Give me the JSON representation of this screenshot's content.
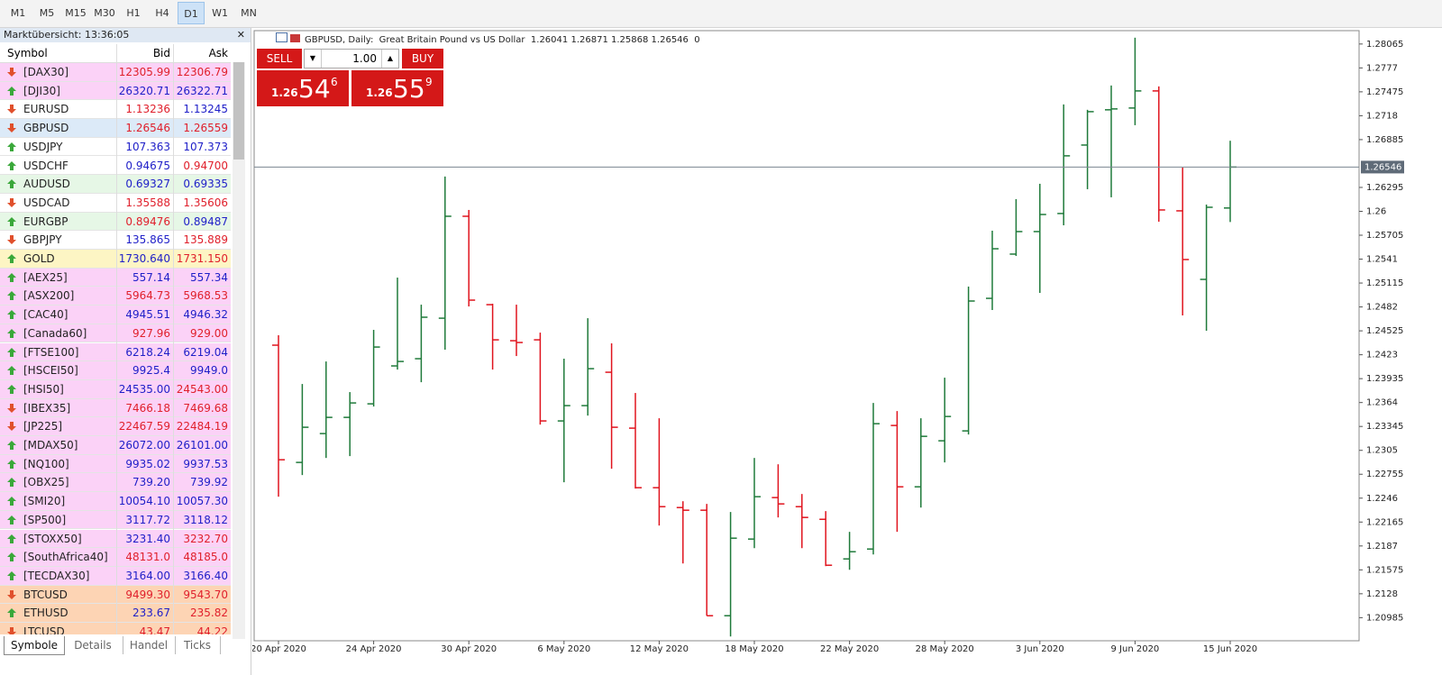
{
  "toolbar": {
    "timeframes": [
      "M1",
      "M5",
      "M15",
      "M30",
      "H1",
      "H4",
      "D1",
      "W1",
      "MN"
    ],
    "active": 6
  },
  "market_watch": {
    "title": "Marktübersicht: 13:36:05",
    "columns": [
      "Symbol",
      "Bid",
      "Ask"
    ],
    "rows": [
      {
        "symbol": "[DAX30]",
        "bid": "12305.99",
        "ask": "12306.79",
        "dir": "down",
        "bg": "#fbd2f7",
        "bid_color": "#e0202c",
        "ask_color": "#e0202c"
      },
      {
        "symbol": "[DJI30]",
        "bid": "26320.71",
        "ask": "26322.71",
        "dir": "up",
        "bg": "#fbd2f7",
        "bid_color": "#1e1ec8",
        "ask_color": "#1e1ec8"
      },
      {
        "symbol": "EURUSD",
        "bid": "1.13236",
        "ask": "1.13245",
        "dir": "down",
        "bg": "#ffffff",
        "bid_color": "#e0202c",
        "ask_color": "#1e1ec8"
      },
      {
        "symbol": "GBPUSD",
        "bid": "1.26546",
        "ask": "1.26559",
        "dir": "down",
        "bg": "#dceaf8",
        "bid_color": "#e0202c",
        "ask_color": "#e0202c"
      },
      {
        "symbol": "USDJPY",
        "bid": "107.363",
        "ask": "107.373",
        "dir": "up",
        "bg": "#ffffff",
        "bid_color": "#1e1ec8",
        "ask_color": "#1e1ec8"
      },
      {
        "symbol": "USDCHF",
        "bid": "0.94675",
        "ask": "0.94700",
        "dir": "up",
        "bg": "#ffffff",
        "bid_color": "#1e1ec8",
        "ask_color": "#e0202c"
      },
      {
        "symbol": "AUDUSD",
        "bid": "0.69327",
        "ask": "0.69335",
        "dir": "up",
        "bg": "#e6f7e6",
        "bid_color": "#1e1ec8",
        "ask_color": "#1e1ec8"
      },
      {
        "symbol": "USDCAD",
        "bid": "1.35588",
        "ask": "1.35606",
        "dir": "down",
        "bg": "#ffffff",
        "bid_color": "#e0202c",
        "ask_color": "#e0202c"
      },
      {
        "symbol": "EURGBP",
        "bid": "0.89476",
        "ask": "0.89487",
        "dir": "up",
        "bg": "#e6f7e6",
        "bid_color": "#e0202c",
        "ask_color": "#1e1ec8"
      },
      {
        "symbol": "GBPJPY",
        "bid": "135.865",
        "ask": "135.889",
        "dir": "down",
        "bg": "#ffffff",
        "bid_color": "#1e1ec8",
        "ask_color": "#e0202c"
      },
      {
        "symbol": "GOLD",
        "bid": "1730.640",
        "ask": "1731.150",
        "dir": "up",
        "bg": "#fdf5c4",
        "bid_color": "#1e1ec8",
        "ask_color": "#e0202c"
      },
      {
        "symbol": "[AEX25]",
        "bid": "557.14",
        "ask": "557.34",
        "dir": "up",
        "bg": "#fbd2f7",
        "bid_color": "#1e1ec8",
        "ask_color": "#1e1ec8"
      },
      {
        "symbol": "[ASX200]",
        "bid": "5964.73",
        "ask": "5968.53",
        "dir": "up",
        "bg": "#fbd2f7",
        "bid_color": "#e0202c",
        "ask_color": "#e0202c"
      },
      {
        "symbol": "[CAC40]",
        "bid": "4945.51",
        "ask": "4946.32",
        "dir": "up",
        "bg": "#fbd2f7",
        "bid_color": "#1e1ec8",
        "ask_color": "#1e1ec8"
      },
      {
        "symbol": "[Canada60]",
        "bid": "927.96",
        "ask": "929.00",
        "dir": "up",
        "bg": "#fbd2f7",
        "bid_color": "#e0202c",
        "ask_color": "#e0202c"
      },
      {
        "symbol": "[FTSE100]",
        "bid": "6218.24",
        "ask": "6219.04",
        "dir": "up",
        "bg": "#fbd2f7",
        "bid_color": "#1e1ec8",
        "ask_color": "#1e1ec8"
      },
      {
        "symbol": "[HSCEI50]",
        "bid": "9925.4",
        "ask": "9949.0",
        "dir": "up",
        "bg": "#fbd2f7",
        "bid_color": "#1e1ec8",
        "ask_color": "#1e1ec8"
      },
      {
        "symbol": "[HSI50]",
        "bid": "24535.00",
        "ask": "24543.00",
        "dir": "up",
        "bg": "#fbd2f7",
        "bid_color": "#1e1ec8",
        "ask_color": "#e0202c"
      },
      {
        "symbol": "[IBEX35]",
        "bid": "7466.18",
        "ask": "7469.68",
        "dir": "down",
        "bg": "#fbd2f7",
        "bid_color": "#e0202c",
        "ask_color": "#e0202c"
      },
      {
        "symbol": "[JP225]",
        "bid": "22467.59",
        "ask": "22484.19",
        "dir": "down",
        "bg": "#fbd2f7",
        "bid_color": "#e0202c",
        "ask_color": "#e0202c"
      },
      {
        "symbol": "[MDAX50]",
        "bid": "26072.00",
        "ask": "26101.00",
        "dir": "up",
        "bg": "#fbd2f7",
        "bid_color": "#1e1ec8",
        "ask_color": "#1e1ec8"
      },
      {
        "symbol": "[NQ100]",
        "bid": "9935.02",
        "ask": "9937.53",
        "dir": "up",
        "bg": "#fbd2f7",
        "bid_color": "#1e1ec8",
        "ask_color": "#1e1ec8"
      },
      {
        "symbol": "[OBX25]",
        "bid": "739.20",
        "ask": "739.92",
        "dir": "up",
        "bg": "#fbd2f7",
        "bid_color": "#1e1ec8",
        "ask_color": "#1e1ec8"
      },
      {
        "symbol": "[SMI20]",
        "bid": "10054.10",
        "ask": "10057.30",
        "dir": "up",
        "bg": "#fbd2f7",
        "bid_color": "#1e1ec8",
        "ask_color": "#1e1ec8"
      },
      {
        "symbol": "[SP500]",
        "bid": "3117.72",
        "ask": "3118.12",
        "dir": "up",
        "bg": "#fbd2f7",
        "bid_color": "#1e1ec8",
        "ask_color": "#1e1ec8"
      },
      {
        "symbol": "[STOXX50]",
        "bid": "3231.40",
        "ask": "3232.70",
        "dir": "up",
        "bg": "#fbd2f7",
        "bid_color": "#1e1ec8",
        "ask_color": "#e0202c"
      },
      {
        "symbol": "[SouthAfrica40]",
        "bid": "48131.0",
        "ask": "48185.0",
        "dir": "up",
        "bg": "#fbd2f7",
        "bid_color": "#e0202c",
        "ask_color": "#e0202c"
      },
      {
        "symbol": "[TECDAX30]",
        "bid": "3164.00",
        "ask": "3166.40",
        "dir": "up",
        "bg": "#fbd2f7",
        "bid_color": "#1e1ec8",
        "ask_color": "#1e1ec8"
      },
      {
        "symbol": "BTCUSD",
        "bid": "9499.30",
        "ask": "9543.70",
        "dir": "down",
        "bg": "#fdd4b4",
        "bid_color": "#e0202c",
        "ask_color": "#e0202c"
      },
      {
        "symbol": "ETHUSD",
        "bid": "233.67",
        "ask": "235.82",
        "dir": "up",
        "bg": "#fdd4b4",
        "bid_color": "#1e1ec8",
        "ask_color": "#e0202c"
      },
      {
        "symbol": "LTCUSD",
        "bid": "43.47",
        "ask": "44.22",
        "dir": "down",
        "bg": "#fdd4b4",
        "bid_color": "#e0202c",
        "ask_color": "#e0202c"
      }
    ],
    "tabs": [
      "Symbole",
      "Details",
      "Handel",
      "Ticks"
    ],
    "active_tab": 0
  },
  "trade_panel": {
    "sell": "SELL",
    "buy": "BUY",
    "lot": "1.00",
    "sell_price": {
      "big": "1.26",
      "main": "54",
      "frac": "6"
    },
    "buy_price": {
      "big": "1.26",
      "main": "55",
      "frac": "9"
    }
  },
  "chart_data": {
    "type": "ohlc",
    "title": "GBPUSD, Daily:  Great Britain Pound vs US Dollar",
    "volume": 0,
    "categories": [
      "20 Apr 2020",
      null,
      null,
      null,
      "24 Apr 2020",
      null,
      null,
      null,
      "30 Apr 2020",
      null,
      null,
      null,
      "6 May 2020",
      null,
      null,
      null,
      "12 May 2020",
      null,
      null,
      null,
      "18 May 2020",
      null,
      null,
      null,
      "22 May 2020",
      null,
      null,
      null,
      "28 May 2020",
      null,
      null,
      null,
      "3 Jun 2020",
      null,
      null,
      null,
      "9 Jun 2020",
      null,
      null,
      null,
      "15 Jun 2020"
    ],
    "open": [
      1.24348,
      1.22901,
      1.23257,
      1.23457,
      1.23624,
      1.24092,
      1.24181,
      1.24681,
      1.25939,
      1.24848,
      1.24403,
      1.24414,
      1.23413,
      1.23602,
      1.24014,
      1.23324,
      1.22589,
      1.22344,
      1.22311,
      1.21009,
      1.21955,
      1.22467,
      1.22355,
      1.22199,
      1.2171,
      1.21832,
      1.23357,
      1.226,
      1.23168,
      1.2329,
      1.24926,
      1.25472,
      1.2575,
      1.25973,
      1.26818,
      1.27253,
      1.27275,
      1.27486,
      1.26006,
      1.2516,
      1.26041
    ],
    "high": [
      1.2447,
      1.23869,
      1.24147,
      1.23769,
      1.24537,
      1.25182,
      1.24848,
      1.26429,
      1.26017,
      1.2486,
      1.24848,
      1.24503,
      1.24181,
      1.24681,
      1.2437,
      1.23758,
      1.23446,
      1.22422,
      1.22389,
      1.22289,
      1.22956,
      1.22878,
      1.22511,
      1.223,
      1.22044,
      1.23635,
      1.23535,
      1.23446,
      1.23947,
      1.25071,
      1.25761,
      1.26151,
      1.2634,
      1.27319,
      1.27253,
      1.27553,
      1.28143,
      1.27542,
      1.2654,
      1.26084,
      1.26871
    ],
    "low": [
      1.22478,
      1.22745,
      1.22956,
      1.22979,
      1.23591,
      1.24047,
      1.23891,
      1.24292,
      1.24826,
      1.24047,
      1.24214,
      1.23368,
      1.22656,
      1.23479,
      1.22823,
      1.22578,
      1.22122,
      1.21654,
      1.21009,
      1.20753,
      1.21843,
      1.22222,
      1.21843,
      1.21621,
      1.21576,
      1.21765,
      1.22044,
      1.22344,
      1.22901,
      1.23246,
      1.24782,
      1.25449,
      1.24993,
      1.25828,
      1.26273,
      1.26173,
      1.27063,
      1.25872,
      1.24715,
      1.24526,
      1.25868
    ],
    "close": [
      1.22934,
      1.23335,
      1.23457,
      1.23635,
      1.24325,
      1.24147,
      1.24693,
      1.25939,
      1.24904,
      1.24414,
      1.24381,
      1.23413,
      1.23602,
      1.24058,
      1.23335,
      1.22589,
      1.22355,
      1.22311,
      1.21009,
      1.21966,
      1.22478,
      1.22389,
      1.22222,
      1.21632,
      1.21799,
      1.23379,
      1.226,
      1.23223,
      1.23468,
      1.24893,
      1.25538,
      1.2575,
      1.25961,
      1.26685,
      1.2723,
      1.27264,
      1.27486,
      1.26017,
      1.25405,
      1.2605,
      1.26546
    ],
    "up_color": "#1f7a3a",
    "down_color": "#e0141e",
    "current_price": 1.26546,
    "ylim": [
      1.207,
      1.2823
    ],
    "yticks": [
      1.28065,
      1.2777,
      1.27475,
      1.2718,
      1.26885,
      1.26295,
      1.26,
      1.25705,
      1.2541,
      1.25115,
      1.2482,
      1.24525,
      1.2423,
      1.23935,
      1.2364,
      1.23345,
      1.2305,
      1.22755,
      1.2246,
      1.22165,
      1.2187,
      1.21575,
      1.2128,
      1.20985
    ],
    "grid": false
  }
}
